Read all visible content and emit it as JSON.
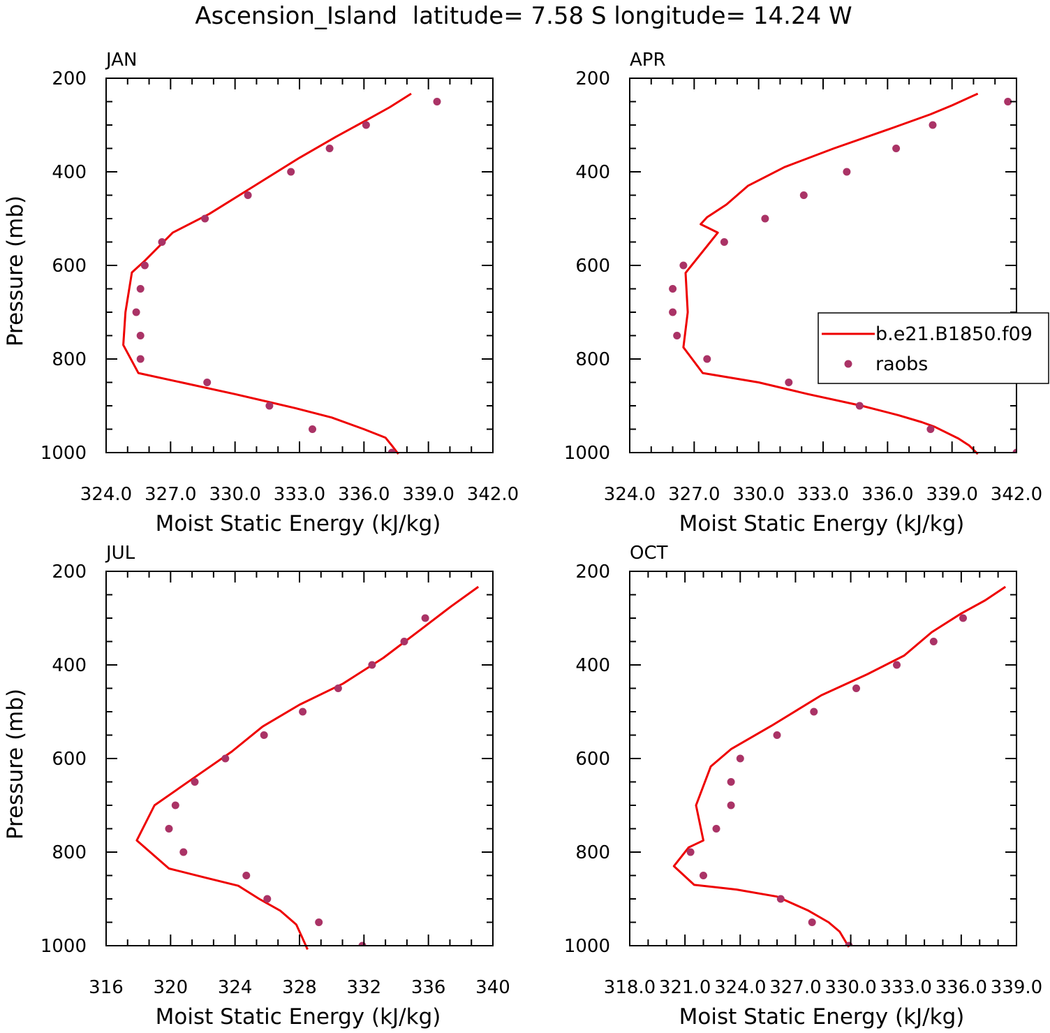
{
  "figure": {
    "title": "Ascension_Island  latitude= 7.58 S longitude= 14.24 W"
  },
  "legend": {
    "model_label": "b.e21.B1850.f09",
    "obs_label": "raobs",
    "line_color": "#ee0000",
    "dot_color": "#aa3366"
  },
  "chart_data": [
    {
      "type": "line",
      "panel": "JAN",
      "xlabel": "Moist Static Energy (kJ/kg)",
      "ylabel": "Pressure (mb)",
      "xlim": [
        324,
        342
      ],
      "ylim": [
        1000,
        200
      ],
      "xticks": [
        324,
        327,
        330,
        333,
        336,
        339,
        342
      ],
      "xtick_labels": [
        "324.0",
        "327.0",
        "330.0",
        "333.0",
        "336.0",
        "339.0",
        "342.0"
      ],
      "yticks": [
        200,
        400,
        600,
        800,
        1000
      ],
      "ytick_labels": [
        "200",
        "400",
        "600",
        "800",
        "1000"
      ],
      "series": [
        {
          "name": "b.e21.B1850.f09",
          "kind": "line",
          "points": [
            [
              338.2,
              233
            ],
            [
              337.2,
              262
            ],
            [
              336.1,
              290
            ],
            [
              334.7,
              325
            ],
            [
              333.0,
              370
            ],
            [
              330.9,
              430
            ],
            [
              328.8,
              490
            ],
            [
              327.1,
              530
            ],
            [
              325.8,
              590
            ],
            [
              325.2,
              615
            ],
            [
              324.9,
              700
            ],
            [
              324.8,
              770
            ],
            [
              325.5,
              830
            ],
            [
              327.5,
              850
            ],
            [
              330.0,
              875
            ],
            [
              332.8,
              905
            ],
            [
              334.5,
              925
            ],
            [
              336.0,
              950
            ],
            [
              337.0,
              968
            ],
            [
              337.3,
              985
            ],
            [
              337.6,
              1003
            ]
          ]
        },
        {
          "name": "raobs",
          "kind": "scatter",
          "points": [
            [
              339.4,
              250
            ],
            [
              336.1,
              300
            ],
            [
              334.4,
              350
            ],
            [
              332.6,
              400
            ],
            [
              330.6,
              450
            ],
            [
              328.6,
              500
            ],
            [
              326.6,
              550
            ],
            [
              325.8,
              600
            ],
            [
              325.6,
              650
            ],
            [
              325.4,
              700
            ],
            [
              325.6,
              750
            ],
            [
              325.6,
              800
            ],
            [
              328.7,
              850
            ],
            [
              331.6,
              900
            ],
            [
              333.6,
              950
            ],
            [
              337.3,
              1000
            ]
          ]
        }
      ]
    },
    {
      "type": "line",
      "panel": "APR",
      "xlabel": "Moist Static Energy (kJ/kg)",
      "ylabel": "",
      "xlim": [
        324,
        342
      ],
      "ylim": [
        1000,
        200
      ],
      "xticks": [
        324,
        327,
        330,
        333,
        336,
        339,
        342
      ],
      "xtick_labels": [
        "324.0",
        "327.0",
        "330.0",
        "333.0",
        "336.0",
        "339.0",
        "342.0"
      ],
      "yticks": [
        200,
        400,
        600,
        800,
        1000
      ],
      "ytick_labels": [
        "200",
        "400",
        "600",
        "800",
        "1000"
      ],
      "series": [
        {
          "name": "b.e21.B1850.f09",
          "kind": "line",
          "points": [
            [
              340.2,
              233
            ],
            [
              339.0,
              258
            ],
            [
              338.0,
              277
            ],
            [
              336.3,
              305
            ],
            [
              333.5,
              350
            ],
            [
              331.2,
              390
            ],
            [
              329.5,
              430
            ],
            [
              328.5,
              470
            ],
            [
              327.6,
              497
            ],
            [
              327.3,
              512
            ],
            [
              328.1,
              530
            ],
            [
              326.6,
              616
            ],
            [
              326.7,
              700
            ],
            [
              326.5,
              775
            ],
            [
              327.4,
              830
            ],
            [
              330.0,
              850
            ],
            [
              332.3,
              875
            ],
            [
              334.8,
              900
            ],
            [
              336.5,
              920
            ],
            [
              337.6,
              935
            ],
            [
              338.2,
              945
            ],
            [
              339.3,
              970
            ],
            [
              339.8,
              985
            ],
            [
              340.2,
              1003
            ]
          ]
        },
        {
          "name": "raobs",
          "kind": "scatter",
          "points": [
            [
              341.6,
              250
            ],
            [
              338.1,
              300
            ],
            [
              336.4,
              350
            ],
            [
              334.1,
              400
            ],
            [
              332.1,
              450
            ],
            [
              330.3,
              500
            ],
            [
              328.4,
              550
            ],
            [
              326.5,
              600
            ],
            [
              326.0,
              650
            ],
            [
              326.0,
              700
            ],
            [
              326.2,
              750
            ],
            [
              327.6,
              800
            ],
            [
              331.4,
              850
            ],
            [
              334.7,
              900
            ],
            [
              338.0,
              950
            ],
            [
              342.0,
              1000
            ]
          ]
        }
      ]
    },
    {
      "type": "line",
      "panel": "JUL",
      "xlabel": "Moist Static Energy (kJ/kg)",
      "ylabel": "Pressure (mb)",
      "xlim": [
        316,
        340
      ],
      "ylim": [
        1000,
        200
      ],
      "xticks": [
        316,
        320,
        324,
        328,
        332,
        336,
        340
      ],
      "xtick_labels": [
        "316",
        "320",
        "324",
        "328",
        "332",
        "336",
        "340"
      ],
      "yticks": [
        200,
        400,
        600,
        800,
        1000
      ],
      "ytick_labels": [
        "200",
        "400",
        "600",
        "800",
        "1000"
      ],
      "series": [
        {
          "name": "b.e21.B1850.f09",
          "kind": "line",
          "points": [
            [
              339.1,
              233
            ],
            [
              337.4,
              275
            ],
            [
              335.5,
              325
            ],
            [
              333.2,
              385
            ],
            [
              330.7,
              440
            ],
            [
              328.0,
              485
            ],
            [
              325.7,
              532
            ],
            [
              323.8,
              585
            ],
            [
              321.5,
              640
            ],
            [
              319.0,
              700
            ],
            [
              317.9,
              775
            ],
            [
              319.9,
              835
            ],
            [
              322.2,
              855
            ],
            [
              324.2,
              872
            ],
            [
              325.5,
              900
            ],
            [
              326.8,
              925
            ],
            [
              327.8,
              955
            ],
            [
              328.2,
              985
            ],
            [
              328.5,
              1008
            ]
          ]
        },
        {
          "name": "raobs",
          "kind": "scatter",
          "points": [
            [
              335.8,
              300
            ],
            [
              334.5,
              350
            ],
            [
              332.5,
              400
            ],
            [
              330.4,
              450
            ],
            [
              328.2,
              500
            ],
            [
              325.8,
              550
            ],
            [
              323.4,
              600
            ],
            [
              321.5,
              650
            ],
            [
              320.3,
              700
            ],
            [
              319.9,
              750
            ],
            [
              320.8,
              800
            ],
            [
              324.7,
              850
            ],
            [
              326.0,
              900
            ],
            [
              329.2,
              950
            ],
            [
              331.9,
              1000
            ]
          ]
        }
      ]
    },
    {
      "type": "line",
      "panel": "OCT",
      "xlabel": "Moist Static Energy (kJ/kg)",
      "ylabel": "",
      "xlim": [
        318,
        339
      ],
      "ylim": [
        1000,
        200
      ],
      "xticks": [
        318,
        321,
        324,
        327,
        330,
        333,
        336,
        339
      ],
      "xtick_labels": [
        "318.0",
        "321.0",
        "324.0",
        "327.0",
        "330.0",
        "333.0",
        "336.0",
        "339.0"
      ],
      "yticks": [
        200,
        400,
        600,
        800,
        1000
      ],
      "ytick_labels": [
        "200",
        "400",
        "600",
        "800",
        "1000"
      ],
      "series": [
        {
          "name": "b.e21.B1850.f09",
          "kind": "line",
          "points": [
            [
              338.4,
              233
            ],
            [
              337.3,
              262
            ],
            [
              336.0,
              290
            ],
            [
              334.4,
              330
            ],
            [
              332.9,
              380
            ],
            [
              330.9,
              420
            ],
            [
              328.4,
              465
            ],
            [
              325.7,
              530
            ],
            [
              323.5,
              580
            ],
            [
              322.4,
              617
            ],
            [
              321.6,
              700
            ],
            [
              322.0,
              775
            ],
            [
              321.2,
              790
            ],
            [
              320.4,
              830
            ],
            [
              321.5,
              870
            ],
            [
              323.8,
              880
            ],
            [
              326.0,
              895
            ],
            [
              327.7,
              925
            ],
            [
              328.8,
              950
            ],
            [
              329.4,
              970
            ],
            [
              329.7,
              990
            ],
            [
              329.9,
              1003
            ]
          ]
        },
        {
          "name": "raobs",
          "kind": "scatter",
          "points": [
            [
              336.1,
              300
            ],
            [
              334.5,
              350
            ],
            [
              332.5,
              400
            ],
            [
              330.3,
              450
            ],
            [
              328.0,
              500
            ],
            [
              326.0,
              550
            ],
            [
              324.0,
              600
            ],
            [
              323.5,
              650
            ],
            [
              323.5,
              700
            ],
            [
              322.7,
              750
            ],
            [
              321.3,
              800
            ],
            [
              322.0,
              850
            ],
            [
              326.2,
              900
            ],
            [
              327.9,
              950
            ],
            [
              329.9,
              1000
            ]
          ]
        }
      ]
    }
  ]
}
